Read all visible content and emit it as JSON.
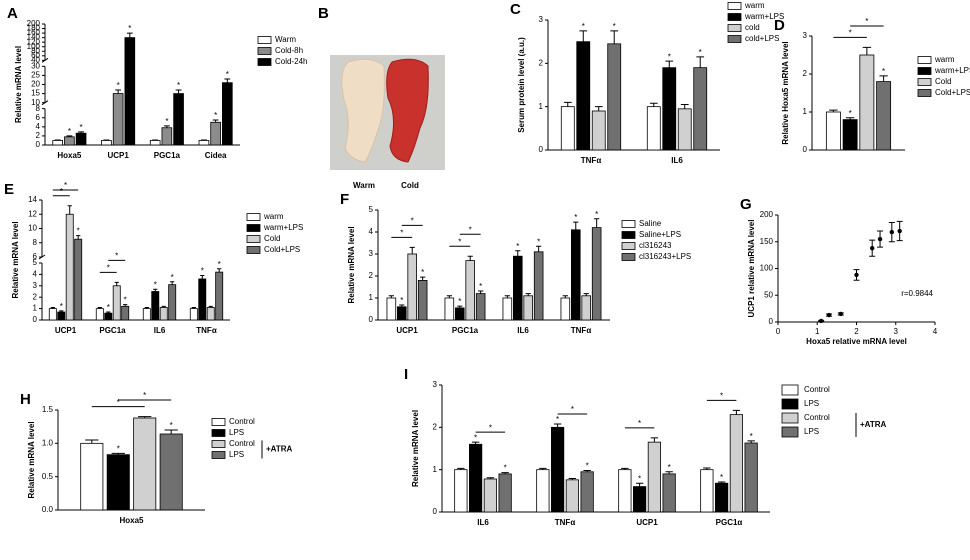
{
  "photo": {
    "panel": "B",
    "labels": [
      "Warm",
      "Cold"
    ]
  },
  "chart_data": [
    {
      "panel": "A",
      "type": "bar",
      "ylabel": "Relative mRNA level",
      "categories": [
        "Hoxa5",
        "UCP1",
        "PGC1a",
        "Cidea"
      ],
      "ysegments": [
        {
          "ylim": [
            0,
            8
          ],
          "yticks": [
            0,
            2,
            4,
            6,
            8
          ]
        },
        {
          "ylim": [
            10,
            30
          ],
          "yticks": [
            10,
            15,
            20,
            25,
            30
          ]
        },
        {
          "ylim": [
            40,
            200
          ],
          "yticks": [
            40,
            60,
            80,
            100,
            120,
            140,
            160,
            180,
            200
          ]
        }
      ],
      "series": [
        {
          "name": "Warm",
          "color": "#ffffff",
          "values": [
            1,
            1,
            1,
            1
          ],
          "errors": [
            0.1,
            0.1,
            0.1,
            0.1
          ],
          "stars": [
            null,
            null,
            null,
            null
          ]
        },
        {
          "name": "Cold-8h",
          "color": "#8c8c8c",
          "values": [
            1.8,
            15,
            3.8,
            5
          ],
          "errors": [
            0.2,
            2,
            0.4,
            0.5
          ],
          "stars": [
            "*",
            "*",
            "*",
            "*"
          ]
        },
        {
          "name": "Cold-24h",
          "color": "#000000",
          "values": [
            2.6,
            140,
            15,
            21
          ],
          "errors": [
            0.3,
            20,
            2,
            2
          ],
          "stars": [
            "*",
            "*",
            "*",
            "*"
          ]
        }
      ]
    },
    {
      "panel": "C",
      "type": "bar",
      "ylabel": "Serum protein level (a.u.)",
      "categories": [
        "TNFα",
        "IL6"
      ],
      "ylim": [
        0,
        3
      ],
      "yticks": [
        0,
        1,
        2,
        3
      ],
      "series": [
        {
          "name": "warm",
          "color": "#ffffff",
          "values": [
            1,
            1
          ],
          "errors": [
            0.1,
            0.08
          ],
          "stars": [
            null,
            null
          ]
        },
        {
          "name": "warm+LPS",
          "color": "#000000",
          "values": [
            2.5,
            1.9
          ],
          "errors": [
            0.25,
            0.15
          ],
          "stars": [
            "*",
            "*"
          ]
        },
        {
          "name": "cold",
          "color": "#d0d0d0",
          "values": [
            0.9,
            0.95
          ],
          "errors": [
            0.1,
            0.1
          ],
          "stars": [
            null,
            null
          ]
        },
        {
          "name": "cold+LPS",
          "color": "#707070",
          "values": [
            2.45,
            1.9
          ],
          "errors": [
            0.3,
            0.25
          ],
          "stars": [
            "*",
            "*"
          ]
        }
      ]
    },
    {
      "panel": "D",
      "type": "bar",
      "ylabel": "Relative Hoxa5 mRNA level",
      "categories": [
        null
      ],
      "ylim": [
        0,
        3
      ],
      "yticks": [
        0,
        1,
        2,
        3
      ],
      "series": [
        {
          "name": "warm",
          "color": "#ffffff",
          "values": [
            1
          ],
          "errors": [
            0.05
          ],
          "stars": [
            null
          ]
        },
        {
          "name": "warm+LPS",
          "color": "#000000",
          "values": [
            0.8
          ],
          "errors": [
            0.05
          ],
          "stars": [
            "*"
          ]
        },
        {
          "name": "Cold",
          "color": "#d0d0d0",
          "values": [
            2.5
          ],
          "errors": [
            0.2
          ],
          "stars": [
            null
          ]
        },
        {
          "name": "Cold+LPS",
          "color": "#707070",
          "values": [
            1.8
          ],
          "errors": [
            0.15
          ],
          "stars": [
            "*"
          ]
        }
      ],
      "comparisons": [
        {
          "a": [
            0,
            0
          ],
          "b": [
            0,
            2
          ],
          "label": "*"
        },
        {
          "a": [
            0,
            1
          ],
          "b": [
            0,
            3
          ],
          "label": "*"
        }
      ]
    },
    {
      "panel": "E",
      "type": "bar",
      "ylabel": "Relative mRNA level",
      "categories": [
        "UCP1",
        "PGC1a",
        "IL6",
        "TNFα"
      ],
      "ysegments": [
        {
          "ylim": [
            0,
            5
          ],
          "yticks": [
            0,
            1,
            2,
            3,
            4,
            5
          ]
        },
        {
          "ylim": [
            6,
            14
          ],
          "yticks": [
            6,
            8,
            10,
            12,
            14
          ]
        }
      ],
      "series": [
        {
          "name": "warm",
          "color": "#ffffff",
          "values": [
            1,
            1,
            1,
            1
          ],
          "errors": [
            0.1,
            0.1,
            0.1,
            0.1
          ],
          "stars": [
            null,
            null,
            null,
            null
          ]
        },
        {
          "name": "warm+LPS",
          "color": "#000000",
          "values": [
            0.7,
            0.6,
            2.5,
            3.6
          ],
          "errors": [
            0.1,
            0.1,
            0.2,
            0.3
          ],
          "stars": [
            "*",
            "*",
            "*",
            "*"
          ]
        },
        {
          "name": "Cold",
          "color": "#d0d0d0",
          "values": [
            12,
            3,
            1.1,
            1.1
          ],
          "errors": [
            1.2,
            0.3,
            0.1,
            0.1
          ],
          "stars": [
            null,
            null,
            null,
            null
          ]
        },
        {
          "name": "Cold+LPS",
          "color": "#707070",
          "values": [
            8.5,
            1.2,
            3.1,
            4.2
          ],
          "errors": [
            0.5,
            0.15,
            0.25,
            0.3
          ],
          "stars": [
            "*",
            "*",
            "*",
            "*"
          ]
        }
      ],
      "comparisons": [
        {
          "a": [
            0,
            0
          ],
          "b": [
            0,
            2
          ],
          "label": "*"
        },
        {
          "a": [
            0,
            0
          ],
          "b": [
            0,
            3
          ],
          "label": "*"
        },
        {
          "a": [
            1,
            0
          ],
          "b": [
            1,
            2
          ],
          "label": "*"
        },
        {
          "a": [
            1,
            1
          ],
          "b": [
            1,
            3
          ],
          "label": "*"
        }
      ]
    },
    {
      "panel": "F",
      "type": "bar",
      "ylabel": "Relative mRNA level",
      "categories": [
        "UCP1",
        "PGC1a",
        "IL6",
        "TNFα"
      ],
      "ylim": [
        0,
        5
      ],
      "yticks": [
        0,
        1,
        2,
        3,
        4,
        5
      ],
      "series": [
        {
          "name": "Saline",
          "color": "#ffffff",
          "values": [
            1,
            1,
            1,
            1
          ],
          "errors": [
            0.1,
            0.1,
            0.1,
            0.1
          ],
          "stars": [
            null,
            null,
            null,
            null
          ]
        },
        {
          "name": "Saline+LPS",
          "color": "#000000",
          "values": [
            0.6,
            0.55,
            2.9,
            4.1
          ],
          "errors": [
            0.08,
            0.08,
            0.25,
            0.35
          ],
          "stars": [
            "*",
            "*",
            "*",
            "*"
          ]
        },
        {
          "name": "cl316243",
          "color": "#d0d0d0",
          "values": [
            3,
            2.7,
            1.1,
            1.1
          ],
          "errors": [
            0.3,
            0.2,
            0.1,
            0.1
          ],
          "stars": [
            null,
            null,
            null,
            null
          ]
        },
        {
          "name": "cl316243+LPS",
          "color": "#707070",
          "values": [
            1.8,
            1.2,
            3.1,
            4.2
          ],
          "errors": [
            0.15,
            0.12,
            0.25,
            0.4
          ],
          "stars": [
            "*",
            "*",
            "*",
            "*"
          ]
        }
      ],
      "comparisons": [
        {
          "a": [
            0,
            0
          ],
          "b": [
            0,
            2
          ],
          "label": "*"
        },
        {
          "a": [
            0,
            1
          ],
          "b": [
            0,
            3
          ],
          "label": "*"
        },
        {
          "a": [
            1,
            0
          ],
          "b": [
            1,
            2
          ],
          "label": "*"
        },
        {
          "a": [
            1,
            1
          ],
          "b": [
            1,
            3
          ],
          "label": "*"
        }
      ]
    },
    {
      "panel": "G",
      "type": "scatter",
      "xlabel": "Hoxa5 relative mRNA level",
      "ylabel": "UCP1 relative mRNA level",
      "xlim": [
        0,
        4
      ],
      "xticks": [
        0,
        1,
        2,
        3,
        4
      ],
      "ylim": [
        0,
        200
      ],
      "yticks": [
        0,
        50,
        100,
        150,
        200
      ],
      "x": [
        1.1,
        1.3,
        1.6,
        2,
        2.4,
        2.6,
        2.9,
        3.1
      ],
      "y": [
        2,
        13,
        15,
        88,
        138,
        155,
        168,
        170
      ],
      "errors": [
        1,
        2,
        2,
        10,
        15,
        15,
        18,
        18
      ],
      "color": "#000000",
      "annotation": "r=0.9844"
    },
    {
      "panel": "H",
      "type": "bar",
      "ylabel": "Relative mRNA level",
      "categories": [
        "Hoxa5"
      ],
      "ylim": [
        0,
        1.5
      ],
      "yticks": [
        {
          "value": 0,
          "label": "0.0"
        },
        {
          "value": 0.5,
          "label": "0.5"
        },
        {
          "value": 1,
          "label": "1.0"
        },
        {
          "value": 1.5,
          "label": "1.5"
        }
      ],
      "series": [
        {
          "name": "Control",
          "color": "#ffffff",
          "values": [
            1
          ],
          "errors": [
            0.05
          ],
          "stars": [
            null
          ]
        },
        {
          "name": "LPS",
          "color": "#000000",
          "values": [
            0.83
          ],
          "errors": [
            0.02
          ],
          "stars": [
            "*"
          ]
        },
        {
          "name": "Control",
          "color": "#d0d0d0",
          "values": [
            1.38
          ],
          "errors": [
            0.02
          ],
          "stars": [
            null
          ]
        },
        {
          "name": "LPS",
          "color": "#707070",
          "values": [
            1.14
          ],
          "errors": [
            0.06
          ],
          "stars": [
            "*"
          ]
        }
      ],
      "legend_group": {
        "label": "+ATRA",
        "series": [
          2,
          3
        ]
      },
      "comparisons": [
        {
          "a": [
            0,
            0
          ],
          "b": [
            0,
            2
          ],
          "label": "*"
        },
        {
          "a": [
            0,
            1
          ],
          "b": [
            0,
            3
          ],
          "label": "*"
        }
      ]
    },
    {
      "panel": "I",
      "type": "bar",
      "ylabel": "Relative mRNA level",
      "categories": [
        "IL6",
        "TNFα",
        "UCP1",
        "PGC1α"
      ],
      "ylim": [
        0,
        3
      ],
      "yticks": [
        0,
        1,
        2,
        3
      ],
      "series": [
        {
          "name": "Control",
          "color": "#ffffff",
          "values": [
            1,
            1,
            1,
            1
          ],
          "errors": [
            0.03,
            0.03,
            0.03,
            0.04
          ],
          "stars": [
            null,
            null,
            null,
            null
          ]
        },
        {
          "name": "LPS",
          "color": "#000000",
          "values": [
            1.6,
            2.0,
            0.6,
            0.68
          ],
          "errors": [
            0.05,
            0.08,
            0.08,
            0.03
          ],
          "stars": [
            "*",
            "*",
            "*",
            "*"
          ]
        },
        {
          "name": "Control",
          "color": "#d0d0d0",
          "values": [
            0.78,
            0.76,
            1.65,
            2.3
          ],
          "errors": [
            0.03,
            0.03,
            0.1,
            0.1
          ],
          "stars": [
            null,
            null,
            null,
            null
          ]
        },
        {
          "name": "LPS",
          "color": "#707070",
          "values": [
            0.9,
            0.95,
            0.9,
            1.63
          ],
          "errors": [
            0.03,
            0.03,
            0.05,
            0.05
          ],
          "stars": [
            "*",
            "*",
            "*",
            "*"
          ]
        }
      ],
      "legend_group": {
        "label": "+ATRA",
        "series": [
          2,
          3
        ]
      },
      "comparisons": [
        {
          "a": [
            0,
            1
          ],
          "b": [
            0,
            3
          ],
          "label": "*"
        },
        {
          "a": [
            1,
            1
          ],
          "b": [
            1,
            3
          ],
          "label": "*"
        },
        {
          "a": [
            2,
            0
          ],
          "b": [
            2,
            2
          ],
          "label": "*"
        },
        {
          "a": [
            3,
            0
          ],
          "b": [
            3,
            2
          ],
          "label": "*"
        }
      ]
    }
  ]
}
